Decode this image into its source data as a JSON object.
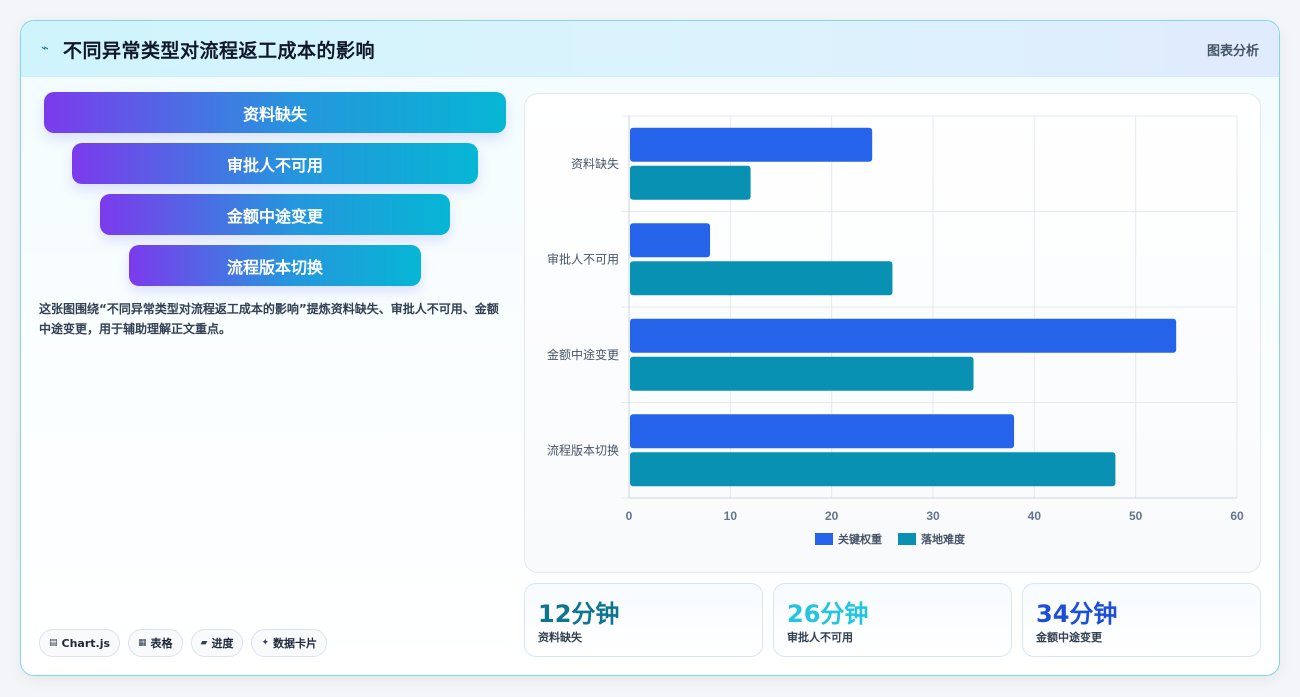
{
  "header": {
    "title": "不同异常类型对流程返工成本的影响",
    "tag": "图表分析",
    "icon": "spark-icon"
  },
  "funnel": {
    "steps": [
      "资料缺失",
      "审批人不可用",
      "金额中途变更",
      "流程版本切换"
    ]
  },
  "description": "这张图围绕“不同异常类型对流程返工成本的影响”提炼资料缺失、审批人不可用、金额中途变更，用于辅助理解正文重点。",
  "chips": [
    {
      "icon": "chart-icon",
      "glyph": "▤",
      "label": "Chart.js"
    },
    {
      "icon": "table-icon",
      "glyph": "▦",
      "label": "表格"
    },
    {
      "icon": "progress-icon",
      "glyph": "▰",
      "label": "进度"
    },
    {
      "icon": "sparkle-icon",
      "glyph": "✦",
      "label": "数据卡片"
    }
  ],
  "stats": [
    {
      "value": "12分钟",
      "label": "资料缺失",
      "color": "#0e7490"
    },
    {
      "value": "26分钟",
      "label": "审批人不可用",
      "color": "#22c5dd"
    },
    {
      "value": "34分钟",
      "label": "金额中途变更",
      "color": "#1d4ed8"
    }
  ],
  "chart_data": {
    "type": "bar",
    "orientation": "horizontal",
    "categories": [
      "资料缺失",
      "审批人不可用",
      "金额中途变更",
      "流程版本切换"
    ],
    "series": [
      {
        "name": "关键权重",
        "values": [
          24,
          8,
          54,
          38
        ],
        "color": "#2563eb"
      },
      {
        "name": "落地难度",
        "values": [
          12,
          26,
          34,
          48
        ],
        "color": "#0891b2"
      }
    ],
    "xlim": [
      0,
      60
    ],
    "xticks": [
      0,
      10,
      20,
      30,
      40,
      50,
      60
    ],
    "grid": true,
    "legend": "bottom"
  }
}
